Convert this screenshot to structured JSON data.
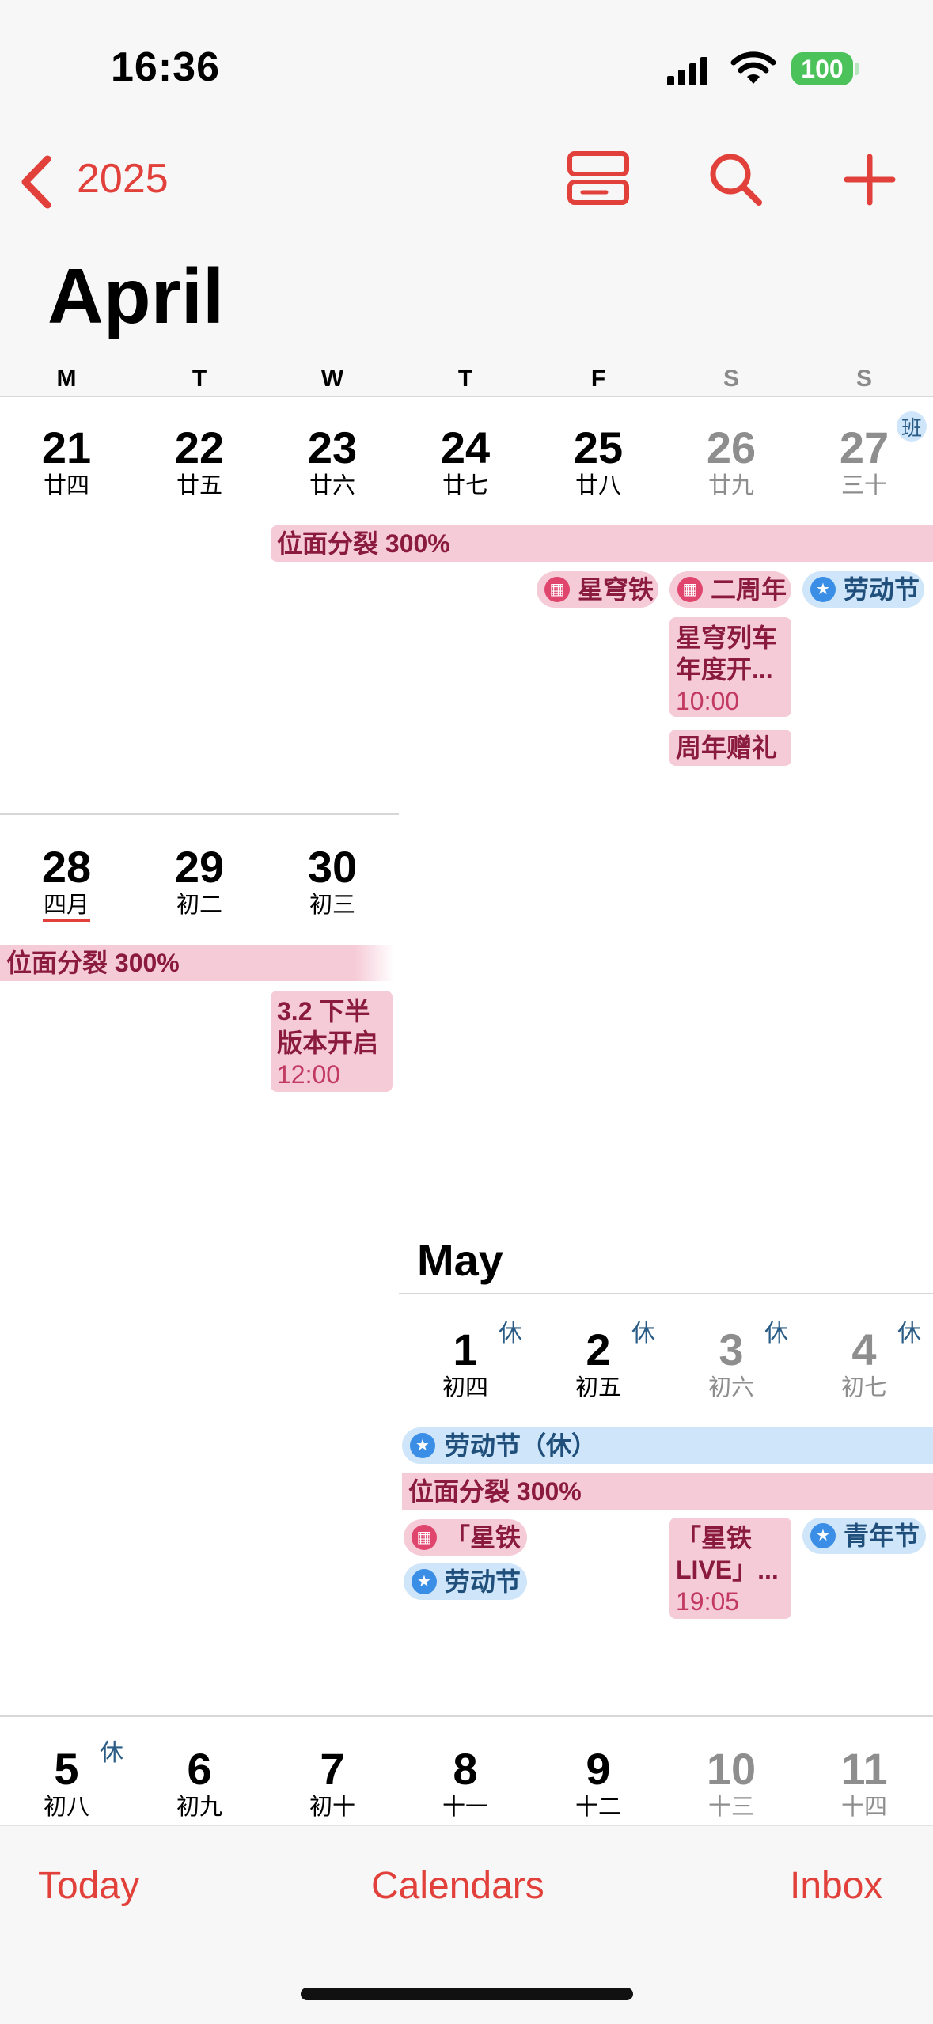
{
  "status": {
    "time": "16:36",
    "battery": "100"
  },
  "nav": {
    "back_label": "2025"
  },
  "april": {
    "title": "April",
    "weekdays": [
      "M",
      "T",
      "W",
      "T",
      "F",
      "S",
      "S"
    ],
    "week1": [
      {
        "num": "21",
        "lunar": "廿四"
      },
      {
        "num": "22",
        "lunar": "廿五"
      },
      {
        "num": "23",
        "lunar": "廿六"
      },
      {
        "num": "24",
        "lunar": "廿七"
      },
      {
        "num": "25",
        "lunar": "廿八"
      },
      {
        "num": "26",
        "lunar": "廿九"
      },
      {
        "num": "27",
        "lunar": "三十",
        "badge": "班"
      }
    ],
    "week2": [
      {
        "num": "28",
        "lunar": "四月"
      },
      {
        "num": "29",
        "lunar": "初二"
      },
      {
        "num": "30",
        "lunar": "初三"
      }
    ],
    "events": {
      "bar_wk1": "位面分裂 300%",
      "pill_fri": "星穹铁",
      "pill_sat": "二周年",
      "pill_sun": "劳动节",
      "sat_box_l1": "星穹列车",
      "sat_box_l2": "年度开...",
      "sat_box_time": "10:00",
      "sat_box2": "周年赠礼",
      "bar_wk2": "位面分裂 300%",
      "wed_box_l1": "3.2 下半",
      "wed_box_l2": "版本开启",
      "wed_box_time": "12:00"
    }
  },
  "may": {
    "title": "May",
    "week1": [
      {
        "num": "1",
        "lunar": "初四",
        "holiday": "休"
      },
      {
        "num": "2",
        "lunar": "初五",
        "holiday": "休"
      },
      {
        "num": "3",
        "lunar": "初六",
        "holiday": "休"
      },
      {
        "num": "4",
        "lunar": "初七",
        "holiday": "休"
      }
    ],
    "events": {
      "labor_bar": "劳动节（休）",
      "bar_split": "位面分裂 300%",
      "pill_thu": "「星铁 L",
      "pill_thu2": "劳动节",
      "sat_box_l1": "「星铁",
      "sat_box_l2": "LIVE」...",
      "sat_box_time": "19:05",
      "pill_sun": "青年节"
    },
    "week2": [
      {
        "num": "5",
        "lunar": "初八",
        "holiday": "休"
      },
      {
        "num": "6",
        "lunar": "初九"
      },
      {
        "num": "7",
        "lunar": "初十"
      },
      {
        "num": "8",
        "lunar": "十一"
      },
      {
        "num": "9",
        "lunar": "十二"
      },
      {
        "num": "10",
        "lunar": "十三"
      },
      {
        "num": "11",
        "lunar": "十四"
      }
    ]
  },
  "tabs": {
    "today": "Today",
    "calendars": "Calendars",
    "inbox": "Inbox"
  },
  "colors": {
    "accent": "#e2403a",
    "event_pink": "#f6cbd8",
    "event_blue": "#cfe6fa"
  }
}
